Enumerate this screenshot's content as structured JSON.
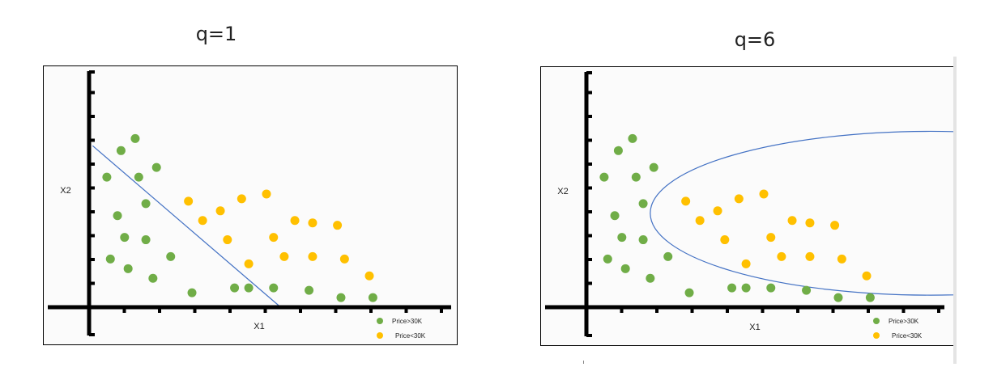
{
  "colors": {
    "green": "#70AD47",
    "orange": "#FFC000",
    "boundary": "#4472C4",
    "axis": "#000000",
    "frame_bg": "#fbfbfb"
  },
  "chart_data": [
    {
      "type": "scatter",
      "title": "q=1",
      "xlabel": "X1",
      "ylabel": "X2",
      "xlim": [
        0,
        10
      ],
      "ylim": [
        0,
        10
      ],
      "grid": false,
      "legend_position": "bottom-right",
      "series": [
        {
          "name": "Price>30K",
          "color": "#70AD47",
          "points": [
            [
              0.5,
              5.4
            ],
            [
              0.9,
              6.5
            ],
            [
              1.3,
              7.0
            ],
            [
              1.4,
              5.4
            ],
            [
              1.6,
              4.3
            ],
            [
              1.9,
              5.8
            ],
            [
              0.8,
              3.8
            ],
            [
              1.0,
              2.9
            ],
            [
              1.6,
              2.8
            ],
            [
              0.6,
              2.0
            ],
            [
              1.1,
              1.6
            ],
            [
              1.8,
              1.2
            ],
            [
              2.3,
              2.1
            ],
            [
              2.9,
              0.6
            ],
            [
              4.1,
              0.8
            ],
            [
              4.5,
              0.8
            ],
            [
              5.2,
              0.8
            ],
            [
              6.2,
              0.7
            ],
            [
              7.1,
              0.4
            ],
            [
              8.0,
              0.4
            ]
          ]
        },
        {
          "name": "Price<30K",
          "color": "#FFC000",
          "points": [
            [
              2.8,
              4.4
            ],
            [
              3.2,
              3.6
            ],
            [
              3.7,
              4.0
            ],
            [
              3.9,
              2.8
            ],
            [
              4.3,
              4.5
            ],
            [
              4.5,
              1.8
            ],
            [
              5.0,
              4.7
            ],
            [
              5.2,
              2.9
            ],
            [
              5.5,
              2.1
            ],
            [
              5.8,
              3.6
            ],
            [
              6.3,
              2.1
            ],
            [
              6.3,
              3.5
            ],
            [
              7.0,
              3.4
            ],
            [
              7.2,
              2.0
            ],
            [
              7.9,
              1.3
            ]
          ]
        }
      ],
      "boundary": {
        "type": "line",
        "from": [
          0.1,
          6.7
        ],
        "to": [
          5.4,
          0
        ]
      }
    },
    {
      "type": "scatter",
      "title": "q=6",
      "xlabel": "X1",
      "ylabel": "X2",
      "xlim": [
        0,
        10
      ],
      "ylim": [
        0,
        10
      ],
      "grid": false,
      "legend_position": "bottom-right",
      "series": [
        {
          "name": "Price>30K",
          "color": "#70AD47",
          "points": [
            [
              0.5,
              5.4
            ],
            [
              0.9,
              6.5
            ],
            [
              1.3,
              7.0
            ],
            [
              1.4,
              5.4
            ],
            [
              1.6,
              4.3
            ],
            [
              1.9,
              5.8
            ],
            [
              0.8,
              3.8
            ],
            [
              1.0,
              2.9
            ],
            [
              1.6,
              2.8
            ],
            [
              0.6,
              2.0
            ],
            [
              1.1,
              1.6
            ],
            [
              1.8,
              1.2
            ],
            [
              2.3,
              2.1
            ],
            [
              2.9,
              0.6
            ],
            [
              4.1,
              0.8
            ],
            [
              4.5,
              0.8
            ],
            [
              5.2,
              0.8
            ],
            [
              6.2,
              0.7
            ],
            [
              7.1,
              0.4
            ],
            [
              8.0,
              0.4
            ]
          ]
        },
        {
          "name": "Price<30K",
          "color": "#FFC000",
          "points": [
            [
              2.8,
              4.4
            ],
            [
              3.2,
              3.6
            ],
            [
              3.7,
              4.0
            ],
            [
              3.9,
              2.8
            ],
            [
              4.3,
              4.5
            ],
            [
              4.5,
              1.8
            ],
            [
              5.0,
              4.7
            ],
            [
              5.2,
              2.9
            ],
            [
              5.5,
              2.1
            ],
            [
              5.8,
              3.6
            ],
            [
              6.3,
              2.1
            ],
            [
              6.3,
              3.5
            ],
            [
              7.0,
              3.4
            ],
            [
              7.2,
              2.0
            ],
            [
              7.9,
              1.3
            ]
          ]
        }
      ],
      "boundary": {
        "type": "ellipse",
        "center": [
          9.7,
          3.9
        ],
        "radii": [
          7.9,
          3.4
        ]
      }
    }
  ]
}
